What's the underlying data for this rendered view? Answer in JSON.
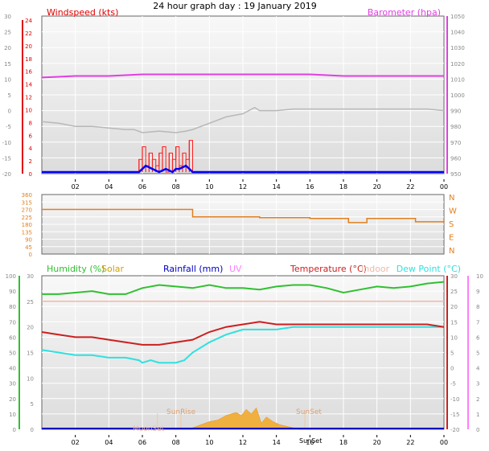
{
  "title": "24 hour graph day : 19 January 2019",
  "colors": {
    "wind": "#e00000",
    "gust": "#ff2020",
    "avgwind": "#0000ff",
    "baro": "#e040e0",
    "temp": "#cc2020",
    "humidity": "#30c030",
    "solar": "#f0b040",
    "rain": "#0000c0",
    "uv": "#ff80ff",
    "indoor": "#f0b8a8",
    "dew": "#30e0e0",
    "winddir": "#e08020",
    "tempgray": "#b8b8b8"
  },
  "panels": {
    "top": {
      "left_label": "Windspeed (kts)",
      "right_label": "Barometer (hpa)",
      "ticks_outer": [
        "30",
        "25",
        "20",
        "15",
        "10",
        "5",
        "0",
        "-5",
        "-10",
        "-15",
        "-20"
      ],
      "ticks_wind": [
        "24",
        "22",
        "20",
        "18",
        "16",
        "14",
        "12",
        "10",
        "8",
        "6",
        "4",
        "2",
        "0"
      ],
      "ticks_baro": [
        "1050",
        "1040",
        "1030",
        "1020",
        "1010",
        "1000",
        "990",
        "980",
        "970",
        "960",
        "950"
      ],
      "ticks_baro_minor": [
        "1045",
        "1035",
        "1025",
        "1015",
        "1005",
        "995",
        "985",
        "975",
        "965",
        "955"
      ]
    },
    "middle": {
      "ticks_deg": [
        "360",
        "315",
        "270",
        "225",
        "180",
        "135",
        "90",
        "45",
        "0"
      ],
      "ticks_compass": [
        "N",
        "W",
        "S",
        "E",
        "N"
      ]
    },
    "bottom": {
      "labels": {
        "humidity": "Humidity (%)",
        "solar": "Solar",
        "rain": "Rainfall (mm)",
        "uv": "UV",
        "temp": "Temperature (°C)",
        "indoor": "Indoor",
        "dew": "Dew Point (°C)"
      },
      "ticks_hum": [
        "100",
        "90",
        "80",
        "70",
        "60",
        "50",
        "40",
        "30",
        "20",
        "10",
        "0"
      ],
      "ticks_left2": [
        "30",
        "25",
        "20",
        "15",
        "10",
        "5",
        "0"
      ],
      "ticks_temp": [
        "30",
        "25",
        "20",
        "15",
        "10",
        "5",
        "0",
        "-5",
        "-10",
        "-15",
        "-20"
      ],
      "ticks_uv": [
        "10",
        "9",
        "8",
        "7",
        "6",
        "5",
        "4",
        "3",
        "2",
        "1",
        "0"
      ],
      "annotations": {
        "moonset": "MoonSet",
        "sunrise": "SunRise",
        "sunset": "SunSet",
        "sunset_axis": "SunSet"
      }
    },
    "x_ticks": [
      "02",
      "04",
      "06",
      "08",
      "10",
      "12",
      "14",
      "16",
      "18",
      "20",
      "22",
      "00"
    ]
  },
  "chart_data": {
    "type": "line",
    "x_unit": "hour",
    "x_range": [
      0,
      24
    ],
    "series": [
      {
        "name": "Barometer (hpa)",
        "axis": "baro",
        "range": [
          950,
          1050
        ],
        "x": [
          0,
          1,
          2,
          3,
          4,
          5,
          6,
          7,
          8,
          9,
          10,
          11,
          12,
          13,
          14,
          15,
          16,
          17,
          18,
          19,
          20,
          21,
          22,
          23,
          24
        ],
        "y": [
          1011,
          1011.5,
          1012,
          1012,
          1012,
          1012.5,
          1013,
          1013,
          1013,
          1013,
          1013,
          1013,
          1013,
          1013,
          1013,
          1013,
          1013,
          1012.5,
          1012,
          1012,
          1012,
          1012,
          1012,
          1012,
          1012
        ]
      },
      {
        "name": "Temperature (°C)",
        "axis": "outer",
        "range": [
          -20,
          30
        ],
        "x": [
          0,
          1,
          2,
          3,
          4,
          5,
          5.5,
          6,
          7,
          8,
          8.6,
          9,
          10,
          11,
          12,
          12.7,
          13,
          14,
          15,
          16,
          17,
          18,
          19,
          20,
          21,
          22,
          23,
          24
        ],
        "y": [
          -3.5,
          -4,
          -5,
          -5,
          -5.5,
          -6,
          -6,
          -7,
          -6.5,
          -7,
          -6.5,
          -6,
          -4,
          -2,
          -1,
          1,
          0,
          0,
          0.5,
          0.5,
          0.5,
          0.5,
          0.5,
          0.5,
          0.5,
          0.5,
          0.5,
          0
        ]
      },
      {
        "name": "Windspeed (kts)",
        "axis": "wind",
        "range": [
          0,
          24
        ],
        "x": [
          5.6,
          5.8,
          6,
          6.2,
          6.4,
          6.6,
          6.8,
          7,
          7.2,
          7.4,
          7.6,
          7.8,
          8,
          8.2,
          8.4,
          8.6,
          8.8,
          9
        ],
        "y": [
          0,
          2,
          4,
          1,
          3,
          2,
          1,
          3,
          4,
          0,
          3,
          2,
          4,
          1,
          3,
          2,
          5,
          0
        ]
      },
      {
        "name": "Avg windspeed",
        "axis": "wind",
        "range": [
          0,
          24
        ],
        "x": [
          0,
          5.8,
          6,
          6.2,
          6.6,
          7,
          7.4,
          7.8,
          8,
          8.2,
          8.6,
          9,
          24
        ],
        "y": [
          0,
          0,
          0.5,
          1,
          0.5,
          0,
          0.5,
          0,
          0.5,
          0.5,
          1,
          0,
          0
        ]
      },
      {
        "name": "Wind direction",
        "axis": "deg",
        "range": [
          0,
          360
        ],
        "x": [
          0,
          1,
          2,
          3,
          4,
          5,
          6,
          7,
          8,
          8.99,
          9,
          10,
          11,
          12,
          13,
          14,
          15,
          16,
          17,
          18,
          18.3,
          19,
          19.4,
          19.6,
          20,
          21,
          22,
          22.3,
          23,
          24
        ],
        "y": [
          270,
          270,
          270,
          270,
          270,
          270,
          270,
          270,
          270,
          270,
          225,
          225,
          225,
          225,
          220,
          220,
          220,
          215,
          215,
          215,
          190,
          190,
          215,
          215,
          215,
          215,
          215,
          195,
          195,
          205
        ]
      },
      {
        "name": "Humidity (%)",
        "axis": "hum",
        "range": [
          0,
          100
        ],
        "x": [
          0,
          1,
          2,
          3,
          4,
          5,
          6,
          7,
          8,
          9,
          10,
          11,
          12,
          13,
          14,
          15,
          16,
          17,
          18,
          19,
          20,
          21,
          22,
          23,
          24
        ],
        "y": [
          88,
          88,
          89,
          90,
          88,
          88,
          92,
          94,
          93,
          92,
          94,
          92,
          92,
          91,
          93,
          94,
          94,
          92,
          89,
          91,
          93,
          92,
          93,
          95,
          96
        ]
      },
      {
        "name": "Dew Point (°C)",
        "axis": "temp",
        "range": [
          -20,
          10
        ],
        "x": [
          0,
          1,
          2,
          3,
          4,
          5,
          5.8,
          6,
          6.5,
          7,
          8,
          8.5,
          9,
          10,
          11,
          12,
          13,
          14,
          15,
          16,
          17,
          18,
          19,
          20,
          21,
          22,
          23,
          24
        ],
        "y": [
          -4.5,
          -5,
          -5.5,
          -5.5,
          -6,
          -6,
          -6.5,
          -7,
          -6.5,
          -7,
          -7,
          -6.5,
          -5,
          -3,
          -1.5,
          -0.5,
          -0.5,
          -0.5,
          0,
          0,
          0,
          0,
          0,
          0,
          0,
          0,
          0,
          0
        ]
      },
      {
        "name": "Temperature (°C)",
        "axis": "temp",
        "range": [
          -20,
          10
        ],
        "x": [
          0,
          1,
          2,
          3,
          4,
          5,
          6,
          7,
          8,
          9,
          10,
          11,
          12,
          13,
          14,
          15,
          16,
          17,
          18,
          19,
          20,
          21,
          22,
          23,
          24
        ],
        "y": [
          -1,
          -1.5,
          -2,
          -2,
          -2.5,
          -3,
          -3.5,
          -3.5,
          -3,
          -2.5,
          -1,
          0,
          0.5,
          1,
          0.5,
          0.5,
          0.5,
          0.5,
          0.5,
          0.5,
          0.5,
          0.5,
          0.5,
          0.5,
          0
        ]
      },
      {
        "name": "Indoor",
        "axis": "temp",
        "range": [
          -20,
          10
        ],
        "x": [
          0,
          6,
          12,
          18,
          24
        ],
        "y": [
          5,
          5,
          5,
          5,
          5
        ]
      },
      {
        "name": "Solar",
        "axis": "hum",
        "range": [
          0,
          100
        ],
        "x": [
          9,
          9.5,
          10,
          10.5,
          11,
          11.3,
          11.6,
          11.9,
          12.2,
          12.5,
          12.8,
          13.1,
          13.4,
          13.8,
          14.2,
          14.6,
          15,
          15.3
        ],
        "y": [
          1,
          3,
          5,
          6,
          9,
          10,
          11,
          9,
          13,
          10,
          14,
          4,
          8,
          5,
          3,
          2,
          1,
          0
        ]
      },
      {
        "name": "Rainfall (mm)",
        "axis": "left2",
        "range": [
          0,
          30
        ],
        "x": [
          0,
          24
        ],
        "y": [
          0,
          0
        ]
      }
    ],
    "annotations": [
      {
        "label": "MoonSet",
        "x": 6.9
      },
      {
        "label": "SunRise",
        "x": 8.3
      },
      {
        "label": "SunSet",
        "x": 15.7
      }
    ]
  }
}
